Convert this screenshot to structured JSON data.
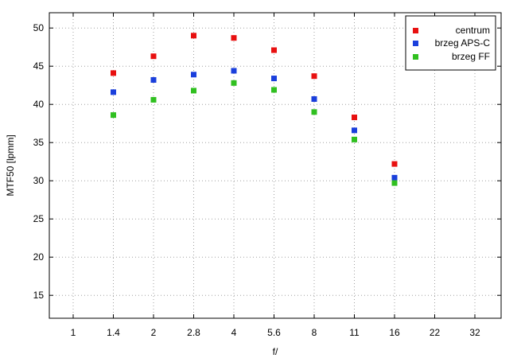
{
  "chart_data": {
    "type": "scatter",
    "xlabel": "f/",
    "ylabel": "MTF50 [lpmm]",
    "x_scale": "log",
    "x_ticks": [
      "1",
      "1.4",
      "2",
      "2.8",
      "4",
      "5.6",
      "8",
      "11",
      "16",
      "22",
      "32"
    ],
    "y_ticks": [
      "15",
      "20",
      "25",
      "30",
      "35",
      "40",
      "45",
      "50"
    ],
    "ylim": [
      12,
      52
    ],
    "grid": true,
    "legend_position": "top-right",
    "series": [
      {
        "name": "centrum",
        "color": "#e81010",
        "points": [
          {
            "x": "1.4",
            "y": 44.1
          },
          {
            "x": "2",
            "y": 46.3
          },
          {
            "x": "2.8",
            "y": 49.0
          },
          {
            "x": "4",
            "y": 48.7
          },
          {
            "x": "5.6",
            "y": 47.1
          },
          {
            "x": "8",
            "y": 43.7
          },
          {
            "x": "11",
            "y": 38.3
          },
          {
            "x": "16",
            "y": 32.2
          }
        ]
      },
      {
        "name": "brzeg APS-C",
        "color": "#1a3fdc",
        "points": [
          {
            "x": "1.4",
            "y": 41.6
          },
          {
            "x": "2",
            "y": 43.2
          },
          {
            "x": "2.8",
            "y": 43.9
          },
          {
            "x": "4",
            "y": 44.4
          },
          {
            "x": "5.6",
            "y": 43.4
          },
          {
            "x": "8",
            "y": 40.7
          },
          {
            "x": "11",
            "y": 36.6
          },
          {
            "x": "16",
            "y": 30.4
          }
        ]
      },
      {
        "name": "brzeg FF",
        "color": "#30c020",
        "points": [
          {
            "x": "1.4",
            "y": 38.6
          },
          {
            "x": "2",
            "y": 40.6
          },
          {
            "x": "2.8",
            "y": 41.8
          },
          {
            "x": "4",
            "y": 42.8
          },
          {
            "x": "5.6",
            "y": 41.9
          },
          {
            "x": "8",
            "y": 39.0
          },
          {
            "x": "11",
            "y": 35.4
          },
          {
            "x": "16",
            "y": 29.7
          }
        ]
      }
    ]
  }
}
